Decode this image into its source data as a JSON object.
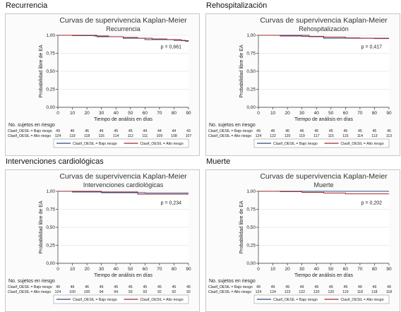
{
  "colors": {
    "bajo": "#2b4a7a",
    "alto": "#a5262a",
    "grid": "#e6e6e6"
  },
  "chart_data": [
    {
      "type": "line",
      "panel_label": "Recurrencia",
      "title": "Curvas de supervivencia Kaplan-Meier",
      "subtitle": "Recurrencia",
      "xlabel": "Tiempo de análisis en días",
      "ylabel": "Probabilidad libre de EA",
      "xlim": [
        0,
        90
      ],
      "ylim": [
        0,
        1
      ],
      "xticks": [
        "0",
        "10",
        "20",
        "30",
        "40",
        "50",
        "60",
        "70",
        "80",
        "90"
      ],
      "yticks": [
        "0,00",
        "0,25",
        "0,50",
        "0,75",
        "1,00"
      ],
      "p_value": "p = 0,661",
      "risk_header": "No. sujetos en riesgo",
      "risk_table": [
        {
          "label": "Clasif_OESIL = Bajo riesgo",
          "values": [
            "49",
            "46",
            "46",
            "46",
            "45",
            "45",
            "44",
            "44",
            "44",
            "43"
          ]
        },
        {
          "label": "Clasif_OESIL = Alto riesgo",
          "values": [
            "124",
            "119",
            "118",
            "116",
            "114",
            "112",
            "111",
            "109",
            "108",
            "107"
          ]
        }
      ],
      "legend": [
        "Clasif_OESIL = Bajo riesgo",
        "Clasif_OESIL = Alto riesgo"
      ],
      "series": [
        {
          "name": "Clasif_OESIL = Bajo riesgo",
          "x": [
            0,
            27,
            45,
            60,
            80,
            88,
            90
          ],
          "y": [
            1.0,
            0.98,
            0.96,
            0.94,
            0.93,
            0.915,
            0.915
          ]
        },
        {
          "name": "Clasif_OESIL = Alto riesgo",
          "x": [
            0,
            10,
            25,
            35,
            45,
            55,
            65,
            75,
            85,
            90
          ],
          "y": [
            1.0,
            0.995,
            0.99,
            0.98,
            0.97,
            0.96,
            0.95,
            0.94,
            0.925,
            0.92
          ]
        }
      ]
    },
    {
      "type": "line",
      "panel_label": "Rehospitalización",
      "title": "Curvas de supervivencia Kaplan-Meier",
      "subtitle": "Rehospitalización",
      "xlabel": "Tiempo de análisis en días",
      "ylabel": "Probabilidad libre de EA",
      "xlim": [
        0,
        90
      ],
      "ylim": [
        0,
        1
      ],
      "xticks": [
        "0",
        "10",
        "20",
        "30",
        "40",
        "50",
        "60",
        "70",
        "80",
        "90"
      ],
      "yticks": [
        "0,00",
        "0,25",
        "0,50",
        "0,75",
        "1,00"
      ],
      "p_value": "p = 0,417",
      "risk_header": "No. sujetos en riesgo",
      "risk_table": [
        {
          "label": "Clasif_OESIL = Bajo riesgo",
          "values": [
            "49",
            "46",
            "46",
            "46",
            "45",
            "45",
            "45",
            "45",
            "45",
            "45"
          ]
        },
        {
          "label": "Clasif_OESIL = Alto riesgo",
          "values": [
            "124",
            "122",
            "120",
            "119",
            "117",
            "115",
            "115",
            "114",
            "113",
            "113"
          ]
        }
      ],
      "legend": [
        "Clasif_OESIL = Bajo riesgo",
        "Clasif_OESIL = Alto riesgo"
      ],
      "series": [
        {
          "name": "Clasif_OESIL = Bajo riesgo",
          "x": [
            0,
            35,
            45,
            90
          ],
          "y": [
            1.0,
            0.98,
            0.96,
            0.96
          ]
        },
        {
          "name": "Clasif_OESIL = Alto riesgo",
          "x": [
            0,
            15,
            30,
            45,
            60,
            70,
            80,
            90
          ],
          "y": [
            1.0,
            0.99,
            0.985,
            0.975,
            0.965,
            0.96,
            0.955,
            0.955
          ]
        }
      ]
    },
    {
      "type": "line",
      "panel_label": "Intervenciones cardiológicas",
      "title": "Curvas de supervivencia Kaplan-Meier",
      "subtitle": "Intervenciones cardiológicas",
      "xlabel": "Tiempo de análisis en días",
      "ylabel": "Probabilidad libre de EA",
      "xlim": [
        0,
        90
      ],
      "ylim": [
        0,
        1
      ],
      "xticks": [
        "0",
        "10",
        "20",
        "30",
        "40",
        "50",
        "60",
        "70",
        "80",
        "90"
      ],
      "yticks": [
        "0,00",
        "0,25",
        "0,50",
        "0,75",
        "1,00"
      ],
      "p_value": "p = 0,234",
      "risk_header": "No. sujetos en riesgo",
      "risk_table": [
        {
          "label": "Clasif_OESIL = Bajo riesgo",
          "values": [
            "49",
            "46",
            "46",
            "46",
            "45",
            "45",
            "45",
            "45",
            "45",
            "45"
          ]
        },
        {
          "label": "Clasif_OESIL = Alto riesgo",
          "values": [
            "124",
            "100",
            "100",
            "94",
            "94",
            "93",
            "93",
            "92",
            "92",
            "92"
          ]
        }
      ],
      "legend": [
        "Clasif_OESIL = Bajo riesgo",
        "Clasif_OESIL = Alto riesgo"
      ],
      "series": [
        {
          "name": "Clasif_OESIL = Bajo riesgo",
          "x": [
            0,
            10,
            30,
            60,
            90
          ],
          "y": [
            1.0,
            0.99,
            0.98,
            0.975,
            0.975
          ]
        },
        {
          "name": "Clasif_OESIL = Alto riesgo",
          "x": [
            0,
            30,
            55,
            90
          ],
          "y": [
            1.0,
            0.99,
            0.96,
            0.96
          ]
        }
      ]
    },
    {
      "type": "line",
      "panel_label": "Muerte",
      "title": "Curvas de supervivencia Kaplan-Meier",
      "subtitle": "Muerte",
      "xlabel": "Tiempo de análisis en días",
      "ylabel": "Probabilidad libre de EA",
      "xlim": [
        0,
        90
      ],
      "ylim": [
        0,
        1
      ],
      "xticks": [
        "0",
        "10",
        "20",
        "30",
        "40",
        "50",
        "60",
        "70",
        "80",
        "90"
      ],
      "yticks": [
        "0,00",
        "0,25",
        "0,50",
        "0,75",
        "1,00"
      ],
      "p_value": "p = 0,202",
      "risk_header": "No. sujetos en riesgo",
      "risk_table": [
        {
          "label": "Clasif_OESIL = Bajo riesgo",
          "values": [
            "49",
            "49",
            "49",
            "49",
            "49",
            "49",
            "49",
            "49",
            "49",
            "49"
          ]
        },
        {
          "label": "Clasif_OESIL = Alto riesgo",
          "values": [
            "124",
            "124",
            "123",
            "122",
            "120",
            "120",
            "119",
            "118",
            "118",
            "118"
          ]
        }
      ],
      "legend": [
        "Clasif_OESIL = Bajo riesgo",
        "Clasif_OESIL = Alto riesgo"
      ],
      "series": [
        {
          "name": "Clasif_OESIL = Bajo riesgo",
          "x": [
            0,
            90
          ],
          "y": [
            1.0,
            1.0
          ]
        },
        {
          "name": "Clasif_OESIL = Alto riesgo",
          "x": [
            0,
            15,
            30,
            45,
            60,
            90
          ],
          "y": [
            1.0,
            0.995,
            0.985,
            0.975,
            0.965,
            0.965
          ]
        }
      ]
    }
  ]
}
